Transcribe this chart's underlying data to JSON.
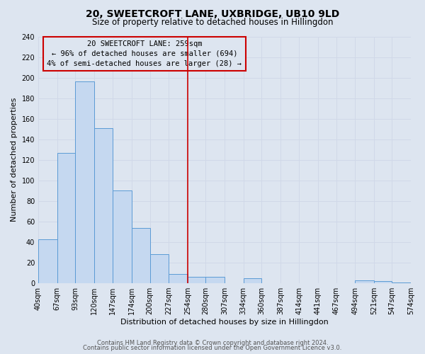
{
  "title": "20, SWEETCROFT LANE, UXBRIDGE, UB10 9LD",
  "subtitle": "Size of property relative to detached houses in Hillingdon",
  "xlabel": "Distribution of detached houses by size in Hillingdon",
  "ylabel": "Number of detached properties",
  "bar_edges": [
    40,
    67,
    93,
    120,
    147,
    174,
    200,
    227,
    254,
    280,
    307,
    334,
    360,
    387,
    414,
    441,
    467,
    494,
    521,
    547,
    574
  ],
  "bar_heights": [
    43,
    127,
    196,
    151,
    90,
    54,
    28,
    9,
    6,
    6,
    0,
    5,
    0,
    0,
    0,
    0,
    0,
    3,
    2,
    1
  ],
  "bar_color": "#c5d8f0",
  "bar_edge_color": "#5b9bd5",
  "reference_line_x": 254,
  "reference_line_color": "#cc0000",
  "annotation_line1": "20 SWEETCROFT LANE: 259sqm",
  "annotation_line2": "← 96% of detached houses are smaller (694)",
  "annotation_line3": "4% of semi-detached houses are larger (28) →",
  "annotation_box_edge_color": "#cc0000",
  "ylim": [
    0,
    240
  ],
  "yticks": [
    0,
    20,
    40,
    60,
    80,
    100,
    120,
    140,
    160,
    180,
    200,
    220,
    240
  ],
  "grid_color": "#d0d8e8",
  "background_color": "#dde5f0",
  "footer_line1": "Contains HM Land Registry data © Crown copyright and database right 2024.",
  "footer_line2": "Contains public sector information licensed under the Open Government Licence v3.0.",
  "title_fontsize": 10,
  "subtitle_fontsize": 8.5,
  "axis_label_fontsize": 8,
  "tick_fontsize": 7,
  "annotation_fontsize": 7.5,
  "footer_fontsize": 6
}
